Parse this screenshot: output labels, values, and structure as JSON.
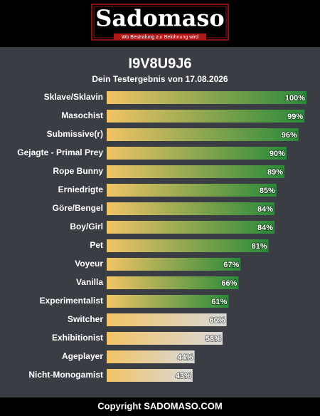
{
  "header": {
    "logo": "Sadomaso",
    "tagline": "Wo Bestrafung zur Belohnung wird"
  },
  "chart_data": {
    "type": "hbar",
    "title": "I9V8U9J6",
    "subtitle": "Dein Testergebnis von 17.08.2026",
    "categories": [
      "Sklave/Sklavin",
      "Masochist",
      "Submissive(r)",
      "Gejagte - Primal Prey",
      "Rope Bunny",
      "Erniedrigte",
      "Göre/Bengel",
      "Boy/Girl",
      "Pet",
      "Voyeur",
      "Vanilla",
      "Experimentalist",
      "Switcher",
      "Exhibitionist",
      "Ageplayer",
      "Nicht-Monogamist"
    ],
    "values": [
      100,
      99,
      96,
      90,
      89,
      85,
      84,
      84,
      81,
      67,
      66,
      61,
      60,
      58,
      44,
      43
    ],
    "value_labels": [
      "100%",
      "99%",
      "96%",
      "90%",
      "89%",
      "85%",
      "84%",
      "84%",
      "81%",
      "67%",
      "66%",
      "61%",
      "60%",
      "58%",
      "44%",
      "43%"
    ],
    "xlim": [
      0,
      100
    ],
    "start_color": "#f2c466",
    "end_colors": [
      "#2a8a3a",
      "#2a8a3a",
      "#2a8a3a",
      "#2a8a3a",
      "#2a8a3a",
      "#2a8a3a",
      "#2a8a3a",
      "#2a8a3a",
      "#2a8a3a",
      "#2a8a3a",
      "#2a8a3a",
      "#2a8a3a",
      "#d8d8d8",
      "#d8d8d8",
      "#d8d8d8",
      "#d8d8d8"
    ]
  },
  "footer": {
    "text": "Copyright SADOMASO.COM"
  }
}
